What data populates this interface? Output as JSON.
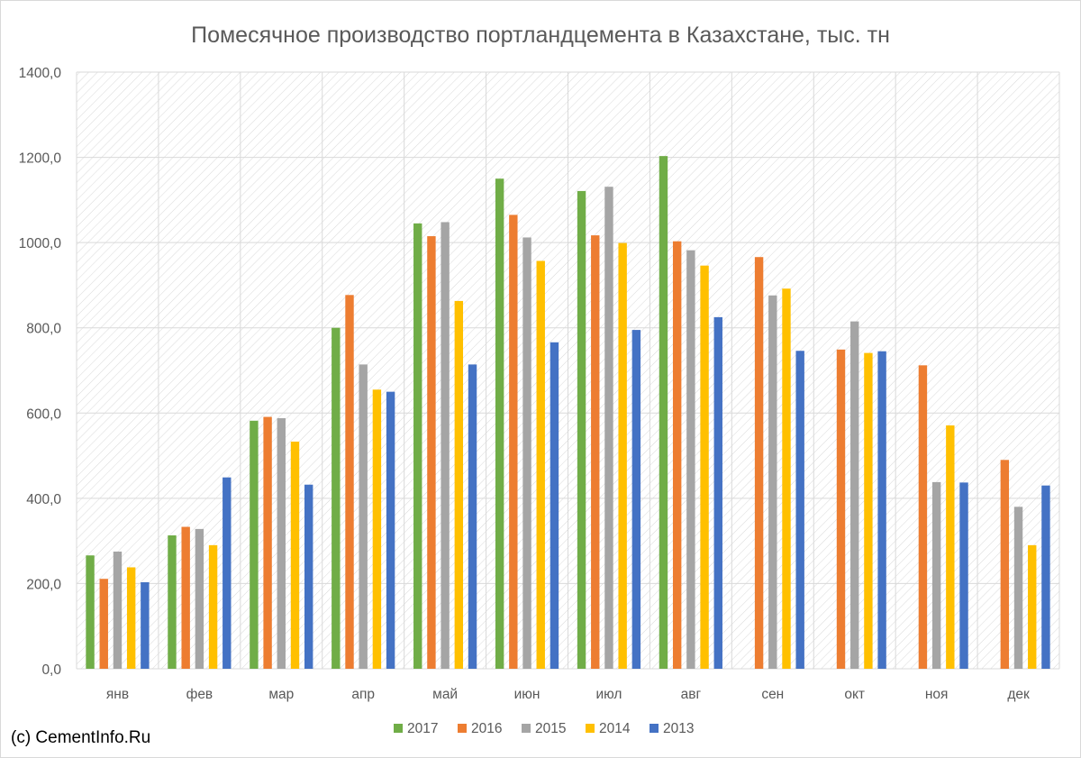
{
  "chart_data": {
    "type": "bar",
    "title": "Помесячное производство портландцемента в Казахстане, тыс. тн",
    "categories": [
      "янв",
      "фев",
      "мар",
      "апр",
      "май",
      "июн",
      "июл",
      "авг",
      "сен",
      "окт",
      "ноя",
      "дек"
    ],
    "y_tick_labels": [
      "0,0",
      "200,0",
      "400,0",
      "600,0",
      "800,0",
      "1000,0",
      "1200,0",
      "1400,0"
    ],
    "ylim": [
      0,
      1400
    ],
    "grid": true,
    "legend_position": "bottom",
    "series": [
      {
        "name": "2017",
        "color": "#70ad47",
        "values": [
          266,
          313,
          582,
          800,
          1045,
          1150,
          1121,
          1203,
          null,
          null,
          null,
          null
        ]
      },
      {
        "name": "2016",
        "color": "#ed7d31",
        "values": [
          211,
          333,
          591,
          877,
          1015,
          1065,
          1017,
          1003,
          966,
          749,
          712,
          490
        ]
      },
      {
        "name": "2015",
        "color": "#a5a5a5",
        "values": [
          275,
          328,
          588,
          714,
          1048,
          1012,
          1131,
          982,
          876,
          815,
          438,
          380
        ]
      },
      {
        "name": "2014",
        "color": "#ffc000",
        "values": [
          238,
          290,
          533,
          655,
          863,
          957,
          999,
          946,
          892,
          741,
          571,
          290
        ]
      },
      {
        "name": "2013",
        "color": "#4472c4",
        "values": [
          203,
          449,
          432,
          650,
          714,
          766,
          795,
          825,
          746,
          745,
          437,
          430
        ]
      }
    ]
  },
  "footer": {
    "copyright": "(c) CementInfo.Ru"
  }
}
